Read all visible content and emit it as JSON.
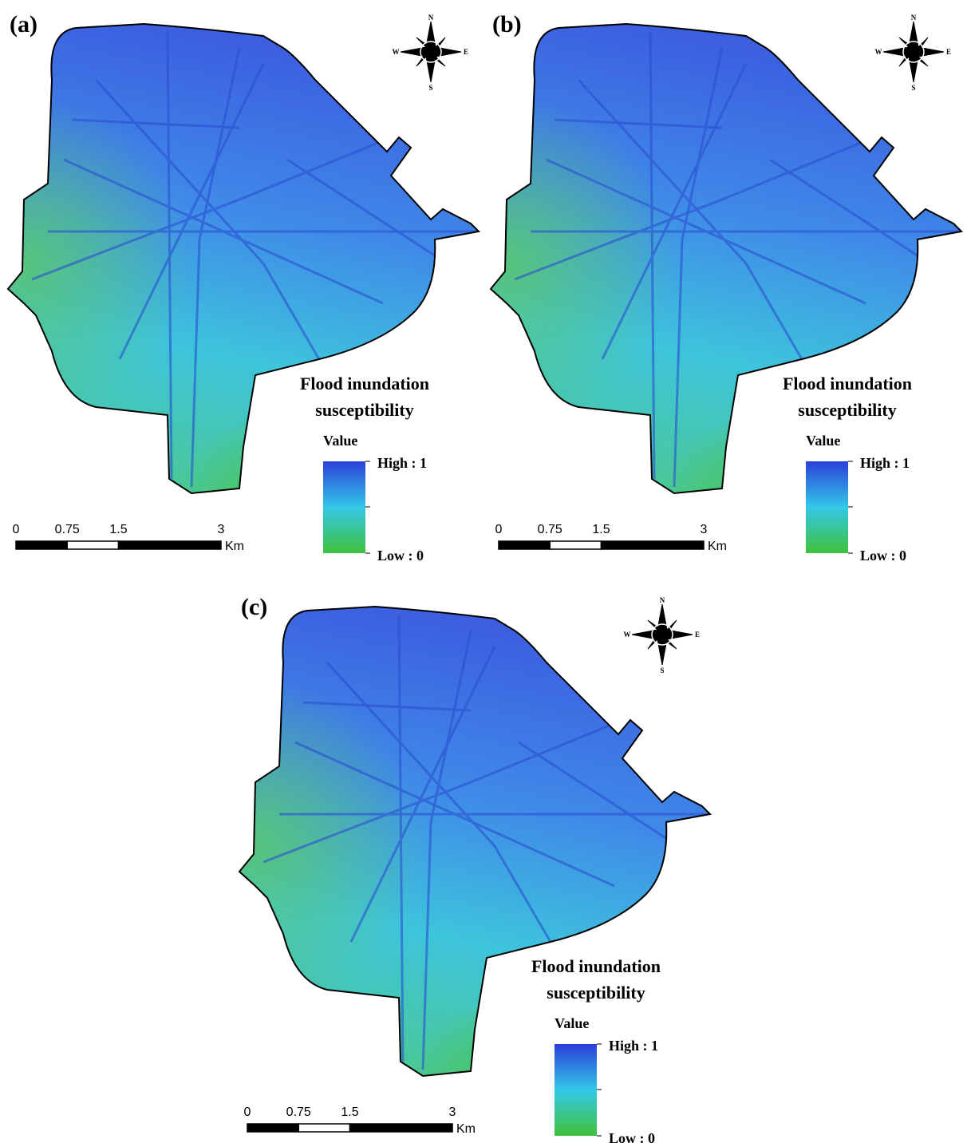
{
  "panels": [
    {
      "label": "(a)"
    },
    {
      "label": "(b)"
    },
    {
      "label": "(c)"
    }
  ],
  "legend": {
    "title_lines": [
      "Flood inundation",
      "susceptibility"
    ],
    "field": "Value",
    "high": "High : 1",
    "low": "Low : 0"
  },
  "scale_bar": {
    "ticks": [
      0,
      0.75,
      1.5,
      3
    ],
    "unit": "Km"
  },
  "compass": {
    "n": "N",
    "s": "S",
    "e": "E",
    "w": "W"
  }
}
